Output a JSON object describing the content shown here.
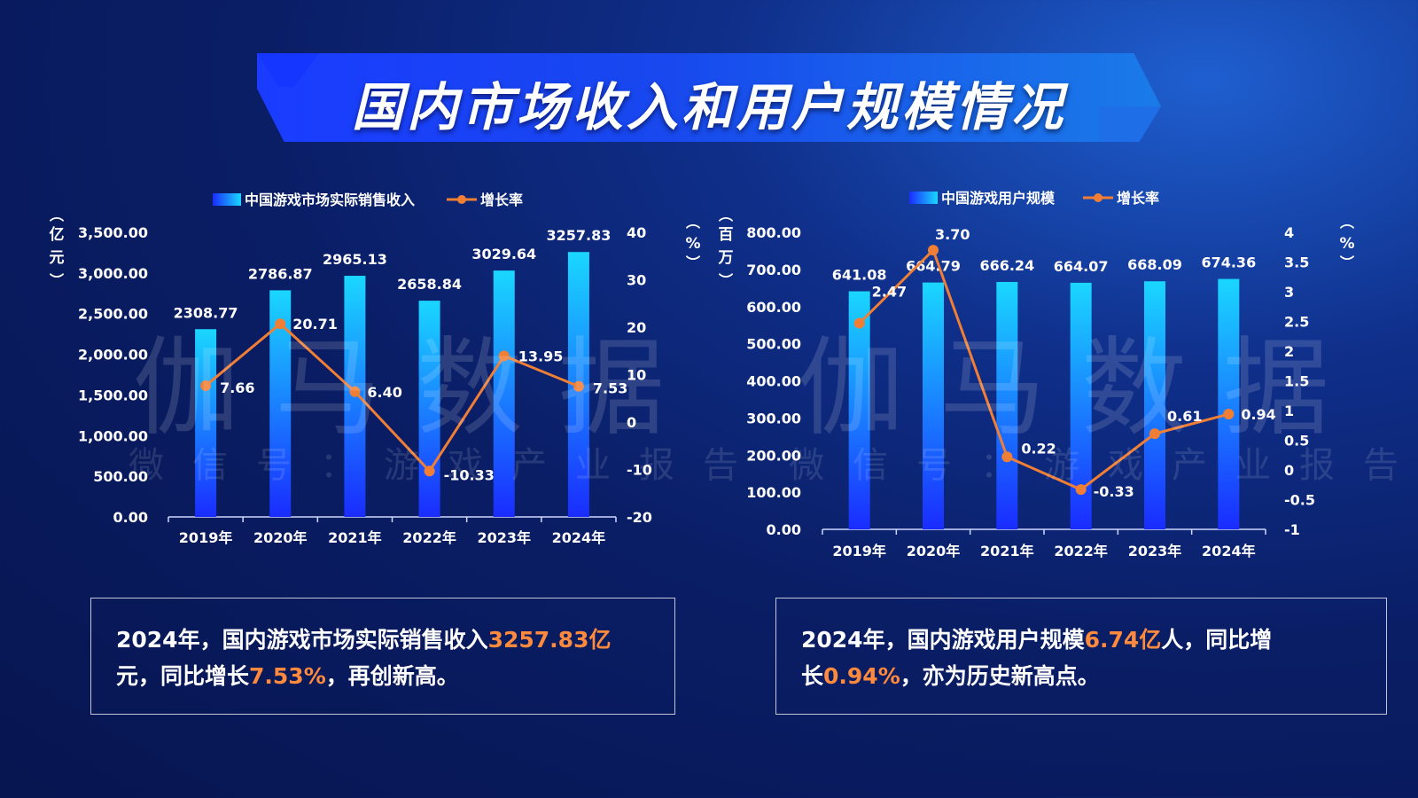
{
  "title": "国内市场收入和用户规模情况",
  "watermark": {
    "main": "伽马数据",
    "sub": "微信号：游戏产业报告"
  },
  "colors": {
    "bar_top": "#1ad7ff",
    "bar_bottom": "#1a2cff",
    "line": "#f07f35",
    "accent_text": "#ff8a3d"
  },
  "chart_data": [
    {
      "type": "bar",
      "categories": [
        "2019年",
        "2020年",
        "2021年",
        "2022年",
        "2023年",
        "2024年"
      ],
      "series": [
        {
          "name": "中国游戏市场实际销售收入",
          "type": "bar",
          "axis": "left",
          "values": [
            2308.77,
            2786.87,
            2965.13,
            2658.84,
            3029.64,
            3257.83
          ],
          "labels": [
            "2308.77",
            "2786.87",
            "2965.13",
            "2658.84",
            "3029.64",
            "3257.83"
          ]
        },
        {
          "name": "增长率",
          "type": "line",
          "axis": "right",
          "values": [
            7.66,
            20.71,
            6.4,
            -10.33,
            13.95,
            7.53
          ],
          "labels": [
            "7.66",
            "20.71",
            "6.40",
            "-10.33",
            "13.95",
            "7.53"
          ]
        }
      ],
      "ylabel": "亿元",
      "y2label": "%",
      "ylim": [
        0,
        3500
      ],
      "y2lim": [
        -20,
        40
      ],
      "yticks": [
        "0.00",
        "500.00",
        "1,000.00",
        "1,500.00",
        "2,000.00",
        "2,500.00",
        "3,000.00",
        "3,500.00"
      ],
      "y2ticks": [
        "-20",
        "-10",
        "0",
        "10",
        "20",
        "30",
        "40"
      ],
      "legend": "top"
    },
    {
      "type": "bar",
      "categories": [
        "2019年",
        "2020年",
        "2021年",
        "2022年",
        "2023年",
        "2024年"
      ],
      "series": [
        {
          "name": "中国游戏用户规模",
          "type": "bar",
          "axis": "left",
          "values": [
            641.08,
            664.79,
            666.24,
            664.07,
            668.09,
            674.36
          ],
          "labels": [
            "641.08",
            "664.79",
            "666.24",
            "664.07",
            "668.09",
            "674.36"
          ]
        },
        {
          "name": "增长率",
          "type": "line",
          "axis": "right",
          "values": [
            2.47,
            3.7,
            0.22,
            -0.33,
            0.61,
            0.94
          ],
          "labels": [
            "2.47",
            "3.70",
            "0.22",
            "-0.33",
            "0.61",
            "0.94"
          ]
        }
      ],
      "ylabel": "百万",
      "y2label": "%",
      "ylim": [
        0,
        800
      ],
      "y2lim": [
        -1,
        4
      ],
      "yticks": [
        "0.00",
        "100.00",
        "200.00",
        "300.00",
        "400.00",
        "500.00",
        "600.00",
        "700.00",
        "800.00"
      ],
      "y2ticks": [
        "-1",
        "-0.5",
        "0",
        "0.5",
        "1",
        "1.5",
        "2",
        "2.5",
        "3",
        "3.5",
        "4"
      ],
      "legend": "top"
    }
  ],
  "notes": [
    {
      "p1": "2024年，国内游戏市场实际销售收入",
      "h1": "3257.83亿",
      "p2": "元，同比增长",
      "h2": "7.53%",
      "p3": "，再创新高。"
    },
    {
      "p1": "2024年，国内游戏用户规模",
      "h1": "6.74亿",
      "p2": "人，同比增长",
      "h2": "0.94%",
      "p3": "，亦为历史新高点。"
    }
  ]
}
